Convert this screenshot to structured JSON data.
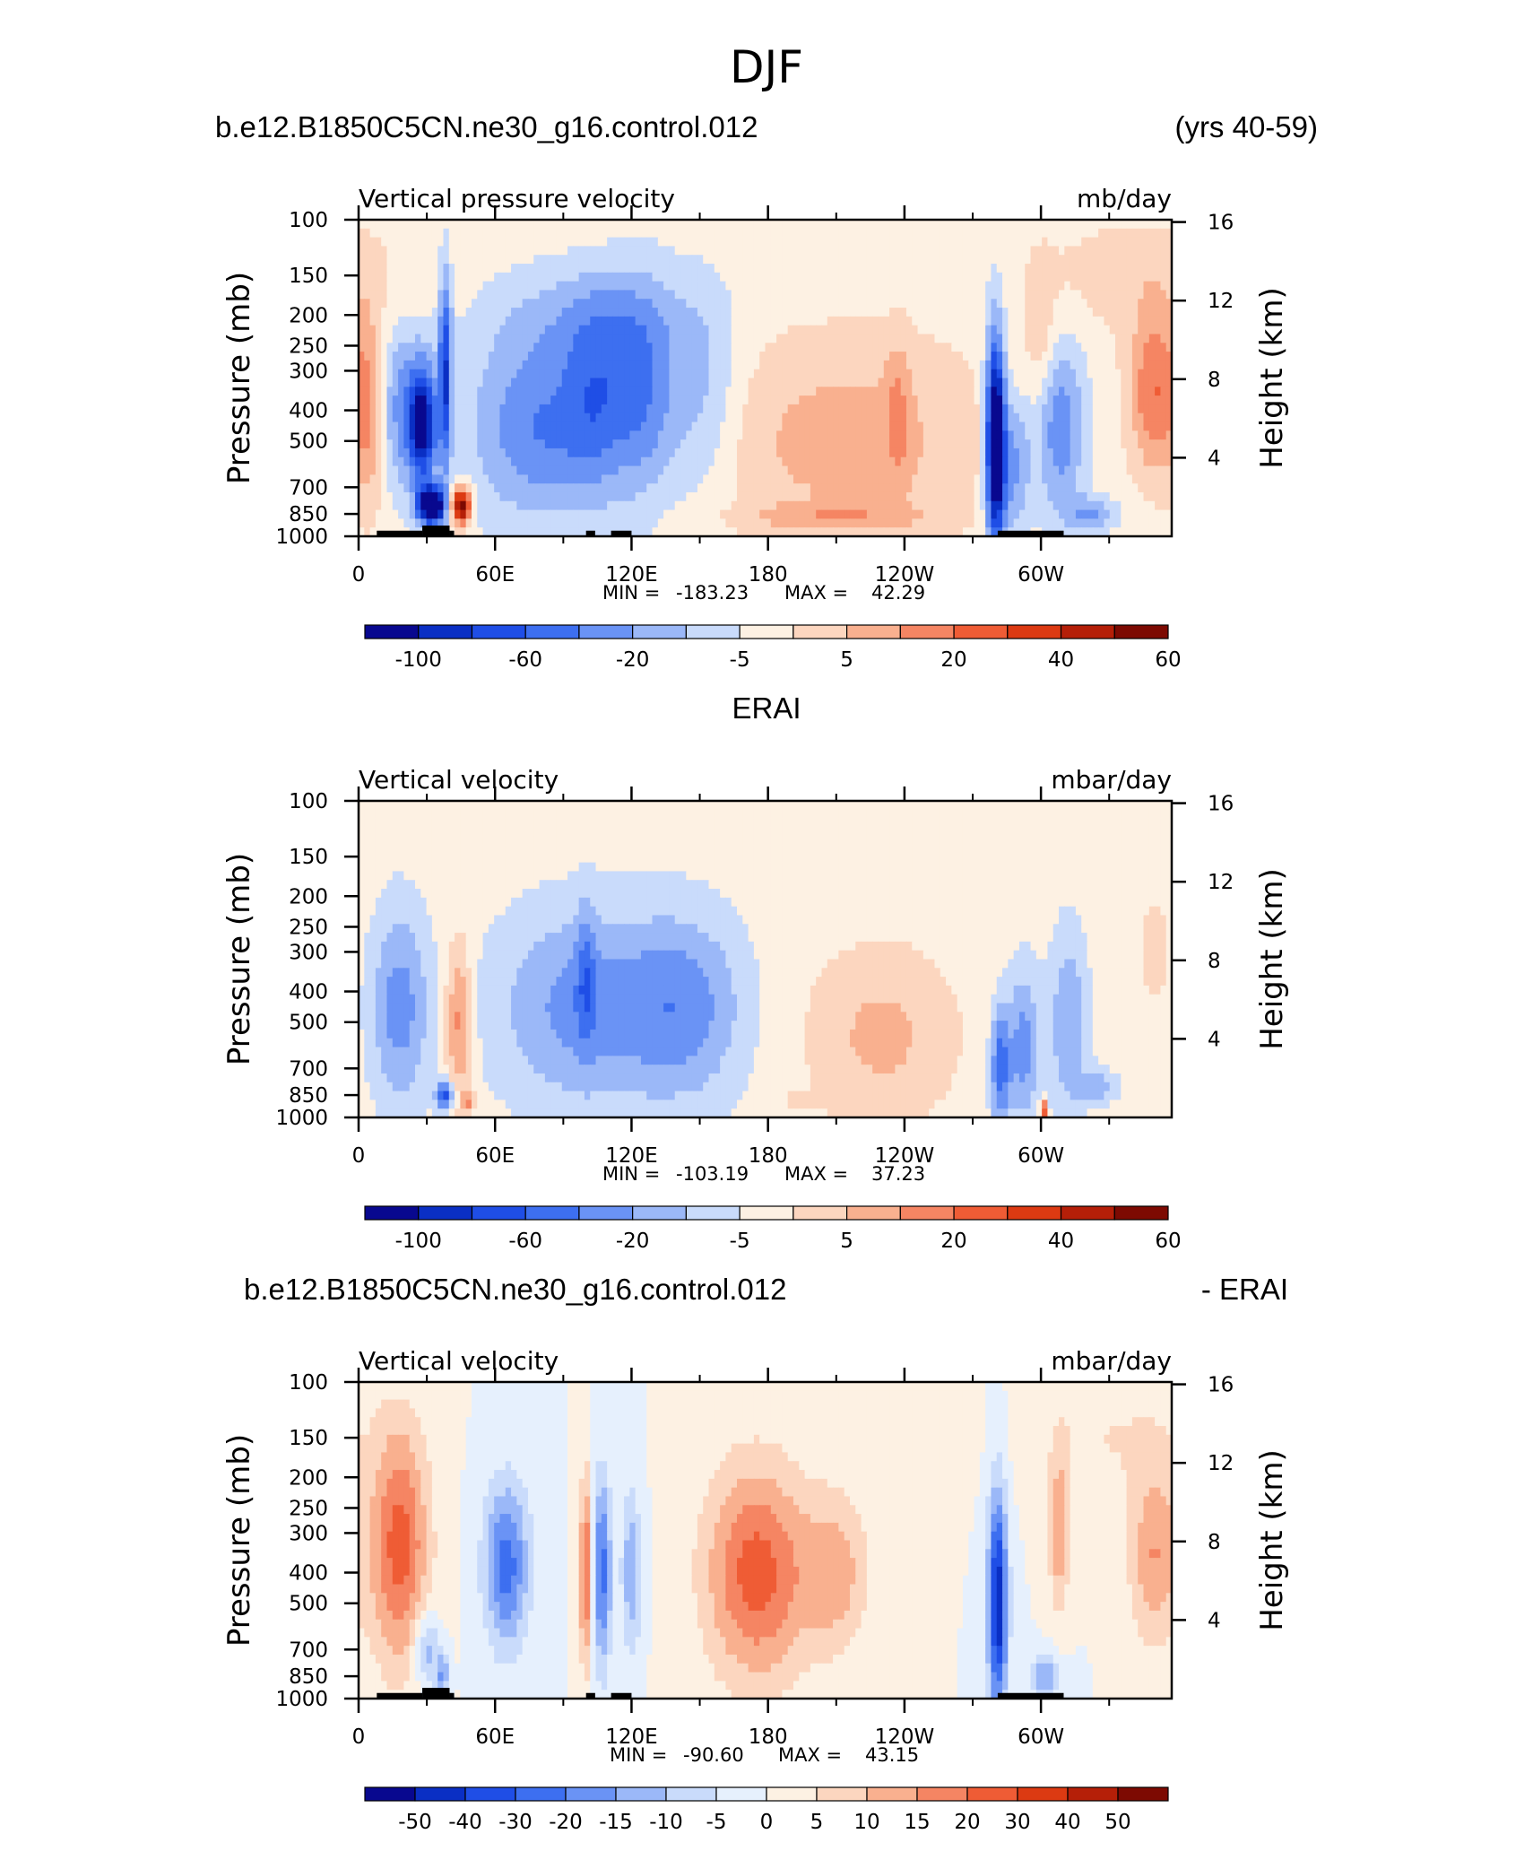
{
  "figure": {
    "title": "DJF"
  },
  "palette": [
    "#08088f",
    "#0a2fc4",
    "#1f4ee6",
    "#3d6ff0",
    "#6a93f5",
    "#9bb8f8",
    "#c9dbfb",
    "#e6f0fd",
    "#fdf1e3",
    "#fcd6bf",
    "#f9b08f",
    "#f58563",
    "#ef5c35",
    "#dc3a12",
    "#b51f08",
    "#7d0a02"
  ],
  "chart_data": [
    {
      "type": "heatmap",
      "left_title": "b.e12.B1850C5CN.ne30_g16.control.012",
      "right_title": "(yrs 40-59)",
      "center_title": "",
      "variable": "Vertical pressure velocity",
      "units": "mb/day",
      "ylabel": "Pressure (mb)",
      "y2label": "Height (km)",
      "stats": {
        "min_label": "MIN =",
        "min": "-183.23",
        "max_label": "MAX =",
        "max": "42.29"
      },
      "colorbar_labels": [
        "-100",
        "-60",
        "-20",
        "-5",
        "5",
        "20",
        "40",
        "60"
      ],
      "colorbar_levels": 15,
      "fields": [
        {
          "lon": 20,
          "p": 400,
          "sl": 9,
          "sp": 200,
          "a": -3
        },
        {
          "lon": 28,
          "p": 450,
          "sl": 4,
          "sp": 150,
          "a": -6
        },
        {
          "lon": 32,
          "p": 800,
          "sl": 4,
          "sp": 80,
          "a": -10
        },
        {
          "lon": 38,
          "p": 300,
          "sl": 2,
          "sp": 200,
          "a": -5
        },
        {
          "lon": 45,
          "p": 800,
          "sl": 3,
          "sp": 80,
          "a": 8
        },
        {
          "lon": 5,
          "p": 400,
          "sl": 5,
          "sp": 250,
          "a": 3
        },
        {
          "lon": 80,
          "p": 450,
          "sl": 22,
          "sp": 280,
          "a": -3.5
        },
        {
          "lon": 105,
          "p": 350,
          "sl": 10,
          "sp": 220,
          "a": -2.5
        },
        {
          "lon": 125,
          "p": 350,
          "sl": 10,
          "sp": 250,
          "a": -3
        },
        {
          "lon": 150,
          "p": 350,
          "sl": 12,
          "sp": 250,
          "a": -2
        },
        {
          "lon": 100,
          "p": 200,
          "sl": 30,
          "sp": 60,
          "a": -1.5
        },
        {
          "lon": 215,
          "p": 500,
          "sl": 42,
          "sp": 350,
          "a": 2
        },
        {
          "lon": 210,
          "p": 870,
          "sl": 30,
          "sp": 60,
          "a": 1.5
        },
        {
          "lon": 237,
          "p": 400,
          "sl": 4,
          "sp": 180,
          "a": 1.5
        },
        {
          "lon": 280,
          "p": 500,
          "sl": 3,
          "sp": 380,
          "a": -9
        },
        {
          "lon": 288,
          "p": 600,
          "sl": 5,
          "sp": 250,
          "a": -3
        },
        {
          "lon": 308,
          "p": 450,
          "sl": 8,
          "sp": 250,
          "a": -3.5
        },
        {
          "lon": 322,
          "p": 850,
          "sl": 8,
          "sp": 80,
          "a": -2.5
        },
        {
          "lon": 350,
          "p": 350,
          "sl": 8,
          "sp": 180,
          "a": 3.5
        },
        {
          "lon": 300,
          "p": 250,
          "sl": 5,
          "sp": 120,
          "a": 1.5
        },
        {
          "lon": 340,
          "p": 150,
          "sl": 30,
          "sp": 50,
          "a": 1
        }
      ],
      "topography": [
        [
          8,
          28,
          960
        ],
        [
          28,
          40,
          925
        ],
        [
          40,
          42,
          960
        ],
        [
          100,
          104,
          960
        ],
        [
          111,
          120,
          960
        ],
        [
          281,
          310,
          960
        ]
      ]
    },
    {
      "type": "heatmap",
      "left_title": "",
      "right_title": "",
      "center_title": "ERAI",
      "variable": "Vertical velocity",
      "units": "mbar/day",
      "ylabel": "Pressure (mb)",
      "y2label": "Height (km)",
      "stats": {
        "min_label": "MIN =",
        "min": "-103.19",
        "max_label": "MAX =",
        "max": "37.23"
      },
      "colorbar_labels": [
        "-100",
        "-60",
        "-20",
        "-5",
        "5",
        "20",
        "40",
        "60"
      ],
      "colorbar_levels": 15,
      "fields": [
        {
          "lon": 18,
          "p": 450,
          "sl": 9,
          "sp": 300,
          "a": -3
        },
        {
          "lon": 38,
          "p": 850,
          "sl": 3,
          "sp": 60,
          "a": -5
        },
        {
          "lon": 44,
          "p": 500,
          "sl": 4,
          "sp": 250,
          "a": 3
        },
        {
          "lon": 48,
          "p": 900,
          "sl": 2,
          "sp": 50,
          "a": 3
        },
        {
          "lon": 100,
          "p": 450,
          "sl": 28,
          "sp": 300,
          "a": -3
        },
        {
          "lon": 145,
          "p": 450,
          "sl": 18,
          "sp": 280,
          "a": -2.5
        },
        {
          "lon": 100,
          "p": 350,
          "sl": 3,
          "sp": 150,
          "a": -2
        },
        {
          "lon": 230,
          "p": 550,
          "sl": 22,
          "sp": 300,
          "a": 1.8
        },
        {
          "lon": 200,
          "p": 880,
          "sl": 10,
          "sp": 40,
          "a": 1
        },
        {
          "lon": 282,
          "p": 700,
          "sl": 3,
          "sp": 250,
          "a": -4
        },
        {
          "lon": 292,
          "p": 600,
          "sl": 5,
          "sp": 300,
          "a": -3
        },
        {
          "lon": 312,
          "p": 500,
          "sl": 6,
          "sp": 300,
          "a": -2.5
        },
        {
          "lon": 325,
          "p": 800,
          "sl": 6,
          "sp": 80,
          "a": -2
        },
        {
          "lon": 301,
          "p": 950,
          "sl": 1,
          "sp": 50,
          "a": 6
        },
        {
          "lon": 350,
          "p": 300,
          "sl": 4,
          "sp": 80,
          "a": 1.5
        }
      ],
      "topography": []
    },
    {
      "type": "heatmap",
      "left_title": "b.e12.B1850C5CN.ne30_g16.control.012",
      "right_title": "- ERAI",
      "center_title": "",
      "variable": "Vertical velocity",
      "units": "mbar/day",
      "ylabel": "Pressure (mb)",
      "y2label": "Height (km)",
      "stats": {
        "min_label": "MIN =",
        "min": "-90.60",
        "max_label": "MAX =",
        "max": "43.15"
      },
      "colorbar_labels": [
        "-50",
        "-40",
        "-30",
        "-20",
        "-15",
        "-10",
        "-5",
        "0",
        "5",
        "10",
        "15",
        "20",
        "30",
        "40",
        "50"
      ],
      "colorbar_levels": 16,
      "fields": [
        {
          "lon": 18,
          "p": 330,
          "sl": 9,
          "sp": 280,
          "a": 4.5
        },
        {
          "lon": 30,
          "p": 700,
          "sl": 4,
          "sp": 150,
          "a": -3
        },
        {
          "lon": 37,
          "p": 850,
          "sl": 2,
          "sp": 100,
          "a": -3
        },
        {
          "lon": 65,
          "p": 380,
          "sl": 7,
          "sp": 200,
          "a": -4.5
        },
        {
          "lon": 100,
          "p": 400,
          "sl": 2,
          "sp": 250,
          "a": 4.5
        },
        {
          "lon": 107,
          "p": 400,
          "sl": 3,
          "sp": 250,
          "a": -4.5
        },
        {
          "lon": 120,
          "p": 400,
          "sl": 3,
          "sp": 200,
          "a": -3
        },
        {
          "lon": 175,
          "p": 400,
          "sl": 16,
          "sp": 300,
          "a": 4.5
        },
        {
          "lon": 210,
          "p": 400,
          "sl": 10,
          "sp": 200,
          "a": 2.5
        },
        {
          "lon": 281,
          "p": 500,
          "sl": 3,
          "sp": 380,
          "a": -7
        },
        {
          "lon": 302,
          "p": 850,
          "sl": 5,
          "sp": 100,
          "a": -3
        },
        {
          "lon": 308,
          "p": 300,
          "sl": 3,
          "sp": 150,
          "a": 3
        },
        {
          "lon": 350,
          "p": 350,
          "sl": 8,
          "sp": 200,
          "a": 3
        },
        {
          "lon": 330,
          "p": 150,
          "sl": 25,
          "sp": 50,
          "a": 1
        }
      ],
      "topography": [
        [
          8,
          28,
          960
        ],
        [
          28,
          40,
          925
        ],
        [
          40,
          42,
          960
        ],
        [
          100,
          104,
          960
        ],
        [
          111,
          120,
          960
        ],
        [
          281,
          310,
          960
        ]
      ]
    }
  ],
  "axes": {
    "x_ticks": [
      {
        "lon": 0,
        "label": "0"
      },
      {
        "lon": 60,
        "label": "60E"
      },
      {
        "lon": 120,
        "label": "120E"
      },
      {
        "lon": 180,
        "label": "180"
      },
      {
        "lon": 240,
        "label": "120W"
      },
      {
        "lon": 300,
        "label": "60W"
      }
    ],
    "x_minor": [
      30,
      90,
      150,
      210,
      270,
      330
    ],
    "x_range": [
      0,
      357.5
    ],
    "p_ticks": [
      100,
      150,
      200,
      250,
      300,
      400,
      500,
      700,
      850,
      1000
    ],
    "p_range": [
      100,
      1000
    ],
    "height_ticks": [
      {
        "km": 16,
        "label": "16"
      },
      {
        "km": 12,
        "label": "12"
      },
      {
        "km": 8,
        "label": "8"
      },
      {
        "km": 4,
        "label": "4"
      }
    ]
  }
}
